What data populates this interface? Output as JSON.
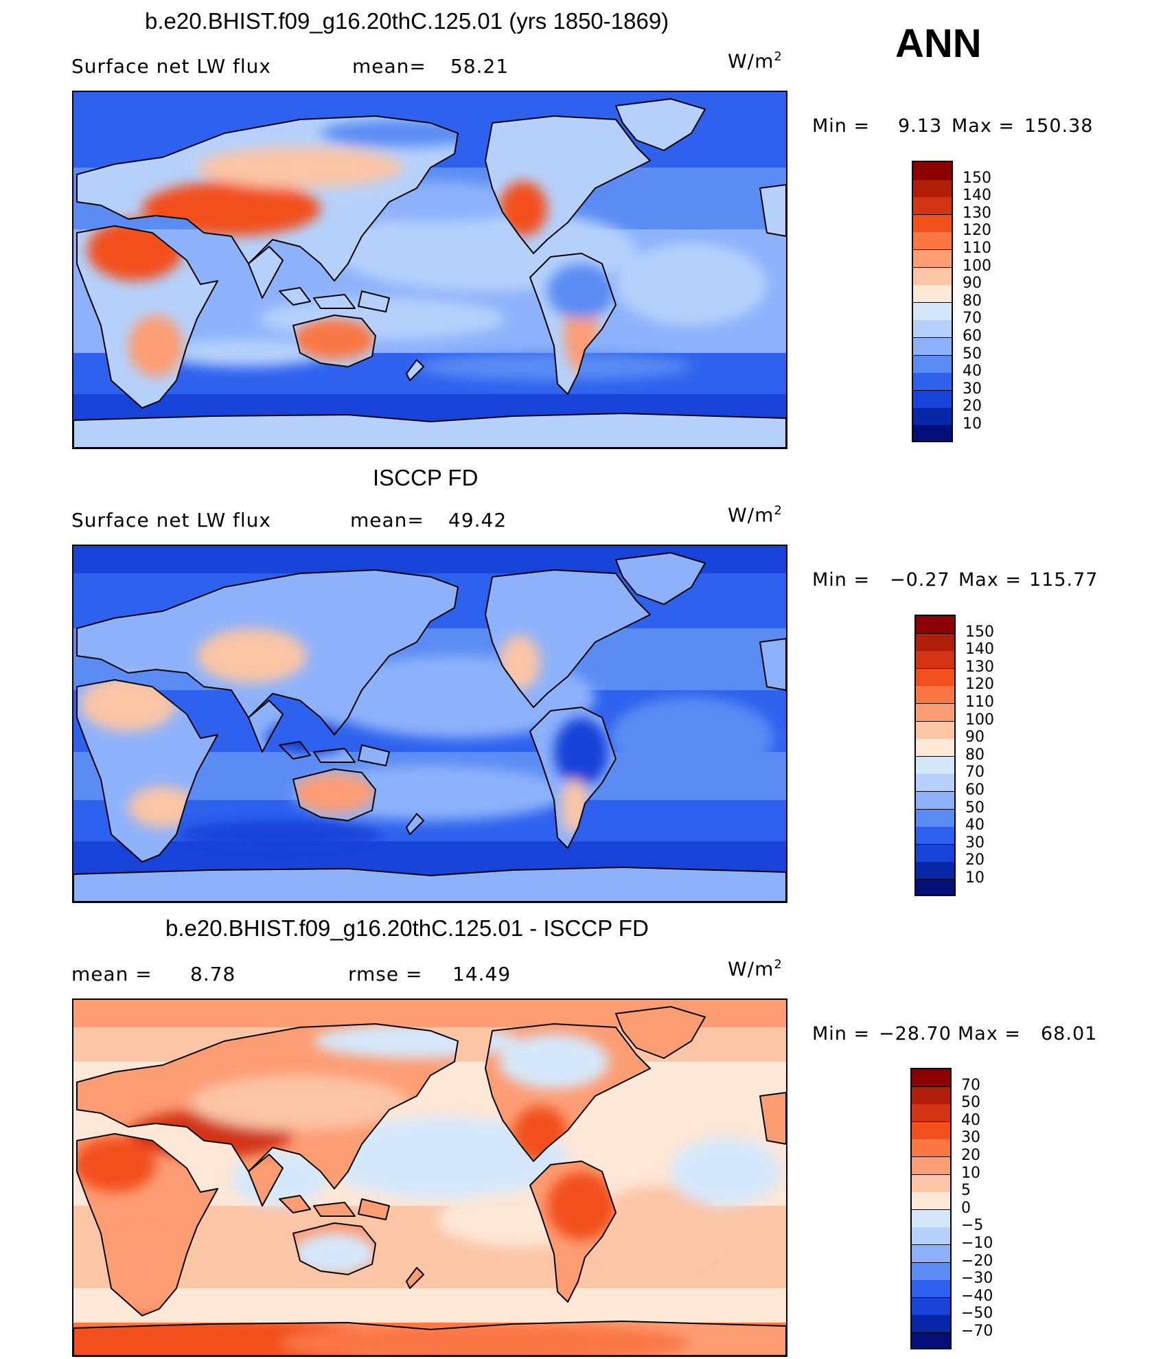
{
  "season": "ANN",
  "panels": [
    {
      "title": "b.e20.BHIST.f09_g16.20thC.125.01 (yrs 1850-1869)",
      "left_label": "Surface net LW flux",
      "stat1_label": "mean=",
      "stat1_value": "58.21",
      "stat2_label": "",
      "stat2_value": "",
      "units": "W/m",
      "units_exp": "2",
      "min_label": "Min  =",
      "min_value": "9.13",
      "max_label": "Max  =",
      "max_value": "150.38",
      "legend_labels": [
        "150",
        "140",
        "130",
        "120",
        "110",
        "100",
        "90",
        "80",
        "70",
        "60",
        "50",
        "40",
        "30",
        "20",
        "10"
      ],
      "colors": [
        "#8b0000",
        "#b01e0a",
        "#d23414",
        "#f2501d",
        "#fb7744",
        "#fd9d74",
        "#fbc5a6",
        "#fde7d6",
        "#d5e8fb",
        "#b5d1fb",
        "#8db2fb",
        "#5a8cf3",
        "#2e62ee",
        "#1843d8",
        "#0726a8",
        "#020f78"
      ],
      "style": "model"
    },
    {
      "title": "ISCCP FD",
      "left_label": "Surface net LW flux",
      "stat1_label": "mean=",
      "stat1_value": "49.42",
      "stat2_label": "",
      "stat2_value": "",
      "units": "W/m",
      "units_exp": "2",
      "min_label": "Min  =",
      "min_value": "−0.27",
      "max_label": "Max  =",
      "max_value": "115.77",
      "legend_labels": [
        "150",
        "140",
        "130",
        "120",
        "110",
        "100",
        "90",
        "80",
        "70",
        "60",
        "50",
        "40",
        "30",
        "20",
        "10"
      ],
      "colors": [
        "#8b0000",
        "#b01e0a",
        "#d23414",
        "#f2501d",
        "#fb7744",
        "#fd9d74",
        "#fbc5a6",
        "#fde7d6",
        "#d5e8fb",
        "#b5d1fb",
        "#8db2fb",
        "#5a8cf3",
        "#2e62ee",
        "#1843d8",
        "#0726a8",
        "#020f78"
      ],
      "style": "obs"
    },
    {
      "title": "b.e20.BHIST.f09_g16.20thC.125.01 - ISCCP FD",
      "left_label": "",
      "stat1_label": "mean =",
      "stat1_value": "8.78",
      "stat2_label": "rmse =",
      "stat2_value": "14.49",
      "units": "W/m",
      "units_exp": "2",
      "min_label": "Min  =",
      "min_value": "−28.70",
      "max_label": "Max  =",
      "max_value": "68.01",
      "legend_labels": [
        "70",
        "50",
        "40",
        "30",
        "20",
        "10",
        "5",
        "0",
        "−5",
        "−10",
        "−20",
        "−30",
        "−40",
        "−50",
        "−70"
      ],
      "colors": [
        "#8b0000",
        "#b01e0a",
        "#d23414",
        "#f2501d",
        "#fb7744",
        "#fd9d74",
        "#fbc5a6",
        "#fde7d6",
        "#d5e8fb",
        "#b5d1fb",
        "#8db2fb",
        "#5a8cf3",
        "#2e62ee",
        "#1843d8",
        "#0726a8",
        "#020f78"
      ],
      "style": "diff"
    }
  ]
}
